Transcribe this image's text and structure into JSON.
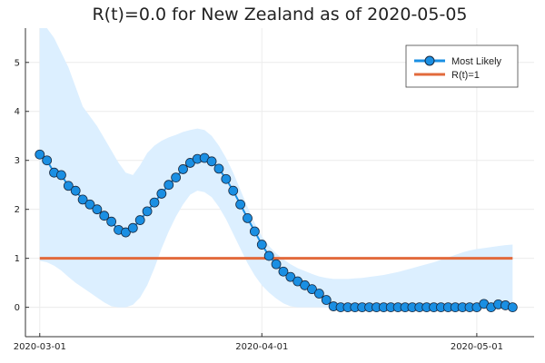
{
  "chart_data": {
    "type": "line",
    "title": "R(t)=0.0 for New Zealand as of 2020-05-05",
    "xlabel": "",
    "ylabel": "",
    "x_start": "2020-03-01",
    "x_end": "2020-05-05",
    "xlim": [
      "2020-02-28",
      "2020-05-09"
    ],
    "ylim": [
      -0.6,
      5.7
    ],
    "x_ticks": [
      {
        "date": "2020-03-01",
        "label": "2020-03-01"
      },
      {
        "date": "2020-04-01",
        "label": "2020-04-01"
      },
      {
        "date": "2020-05-01",
        "label": "2020-05-01"
      }
    ],
    "y_ticks": [
      0,
      1,
      2,
      3,
      4,
      5
    ],
    "grid": true,
    "legend": {
      "position": "top-right",
      "entries": [
        "Most Likely",
        "R(t)=1"
      ]
    },
    "colors": {
      "most_likely": "#1a8fe3",
      "most_likely_edge": "#1a2a40",
      "band": "#dcefff",
      "threshold": "#e26a3c",
      "grid": "#ececec",
      "axis": "#333333"
    },
    "series": [
      {
        "name": "Most Likely",
        "values": [
          3.12,
          3.0,
          2.75,
          2.7,
          2.48,
          2.38,
          2.2,
          2.1,
          2.0,
          1.87,
          1.75,
          1.58,
          1.53,
          1.62,
          1.78,
          1.96,
          2.14,
          2.32,
          2.5,
          2.65,
          2.82,
          2.95,
          3.03,
          3.05,
          2.98,
          2.83,
          2.62,
          2.38,
          2.1,
          1.82,
          1.55,
          1.28,
          1.05,
          0.88,
          0.73,
          0.62,
          0.53,
          0.45,
          0.37,
          0.28,
          0.15,
          0.02,
          0.0,
          0.0,
          0.0,
          0.0,
          0.0,
          0.0,
          0.0,
          0.0,
          0.0,
          0.0,
          0.0,
          0.0,
          0.0,
          0.0,
          0.0,
          0.0,
          0.0,
          0.0,
          0.0,
          0.0,
          0.07,
          0.0,
          0.06,
          0.04,
          0.0
        ]
      },
      {
        "name": "R(t)=1",
        "values": [
          1,
          1
        ]
      }
    ],
    "band": {
      "upper": [
        5.7,
        5.7,
        5.5,
        5.2,
        4.9,
        4.5,
        4.1,
        3.9,
        3.7,
        3.45,
        3.2,
        2.95,
        2.75,
        2.7,
        2.9,
        3.15,
        3.3,
        3.4,
        3.47,
        3.52,
        3.58,
        3.62,
        3.65,
        3.62,
        3.5,
        3.3,
        3.05,
        2.75,
        2.4,
        2.05,
        1.72,
        1.45,
        1.25,
        1.1,
        0.98,
        0.88,
        0.8,
        0.74,
        0.68,
        0.63,
        0.6,
        0.58,
        0.58,
        0.58,
        0.59,
        0.6,
        0.62,
        0.64,
        0.66,
        0.69,
        0.72,
        0.76,
        0.8,
        0.84,
        0.88,
        0.92,
        0.97,
        1.02,
        1.07,
        1.12,
        1.16,
        1.19,
        1.21,
        1.23,
        1.25,
        1.27,
        1.28
      ],
      "lower": [
        0.95,
        0.92,
        0.85,
        0.75,
        0.62,
        0.5,
        0.4,
        0.3,
        0.2,
        0.1,
        0.02,
        0.0,
        0.0,
        0.05,
        0.2,
        0.45,
        0.8,
        1.2,
        1.55,
        1.85,
        2.1,
        2.3,
        2.38,
        2.35,
        2.25,
        2.05,
        1.8,
        1.5,
        1.2,
        0.9,
        0.65,
        0.45,
        0.3,
        0.18,
        0.08,
        0.02,
        0.0,
        0.0,
        0.0,
        0.0,
        0.0,
        0.0,
        0.0,
        0.0,
        0.0,
        0.0,
        0.0,
        0.0,
        0.0,
        0.0,
        0.0,
        0.0,
        0.0,
        0.0,
        0.0,
        0.0,
        0.0,
        0.0,
        0.0,
        0.0,
        0.0,
        0.0,
        0.0,
        0.0,
        0.0,
        0.0,
        0.0
      ]
    }
  }
}
